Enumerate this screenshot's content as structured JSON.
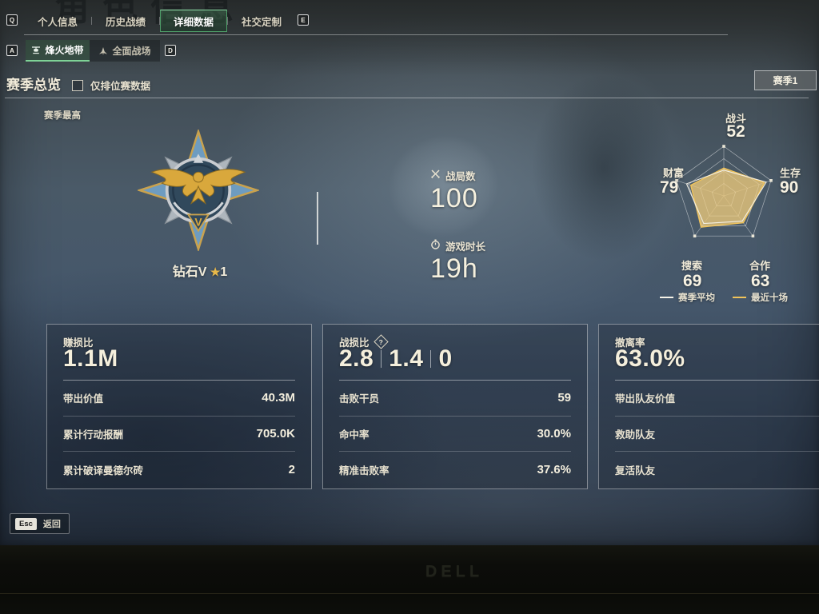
{
  "background_title": "角色信息",
  "top_nav": {
    "key_left": "Q",
    "key_right": "E",
    "tabs": [
      {
        "label": "个人信息"
      },
      {
        "label": "历史战绩"
      },
      {
        "label": "详细数据"
      },
      {
        "label": "社交定制"
      }
    ]
  },
  "mode_nav": {
    "key_left": "A",
    "key_right": "D",
    "tabs": [
      {
        "label": "烽火地带"
      },
      {
        "label": "全面战场"
      }
    ]
  },
  "season_header": {
    "title": "赛季总览",
    "checkbox_label": "仅排位赛数据",
    "season_button": "赛季1"
  },
  "rank": {
    "section_label": "赛季最高",
    "name": "钻石V",
    "star": "★",
    "star_count": "1"
  },
  "overview": {
    "battles_label": "战局数",
    "battles_value": "100",
    "playtime_label": "游戏时长",
    "playtime_value": "19h"
  },
  "chart_data": {
    "type": "radar",
    "max": 100,
    "grid_levels": 4,
    "grid": true,
    "axes": [
      {
        "label": "战斗",
        "value": 52
      },
      {
        "label": "生存",
        "value": 90
      },
      {
        "label": "合作",
        "value": 63
      },
      {
        "label": "搜索",
        "value": 69
      },
      {
        "label": "财富",
        "value": 79
      }
    ],
    "series": [
      {
        "name": "赛季平均",
        "color": "#f5f2e8",
        "fill": "none",
        "values": [
          52,
          90,
          63,
          69,
          79
        ]
      },
      {
        "name": "最近十场",
        "color": "#f0c35a",
        "fill": "rgba(231,197,122,0.80)",
        "values": [
          56,
          86,
          67,
          78,
          70
        ]
      }
    ],
    "legend": [
      {
        "label": "赛季平均",
        "color": "#f5f2e8"
      },
      {
        "label": "最近十场",
        "color": "#f0c35a"
      }
    ],
    "legend_position": "bottom"
  },
  "cards": [
    {
      "title": "赚损比",
      "value": "1.1M",
      "rows": [
        {
          "label": "带出价值",
          "value": "40.3M"
        },
        {
          "label": "累计行动报酬",
          "value": "705.0K"
        },
        {
          "label": "累计破译曼德尔砖",
          "value": "2"
        }
      ]
    },
    {
      "title": "战损比",
      "help": "?",
      "value_parts": [
        "2.8",
        "1.4",
        "0"
      ],
      "rows": [
        {
          "label": "击败干员",
          "value": "59"
        },
        {
          "label": "命中率",
          "value": "30.0%"
        },
        {
          "label": "精准击败率",
          "value": "37.6%"
        }
      ]
    },
    {
      "title": "撤离率",
      "value": "63.0%",
      "rows": [
        {
          "label": "带出队友价值",
          "value": ""
        },
        {
          "label": "救助队友",
          "value": ""
        },
        {
          "label": "复活队友",
          "value": ""
        }
      ]
    }
  ],
  "footer": {
    "key": "Esc",
    "label": "返回"
  },
  "monitor_brand": "DELL"
}
